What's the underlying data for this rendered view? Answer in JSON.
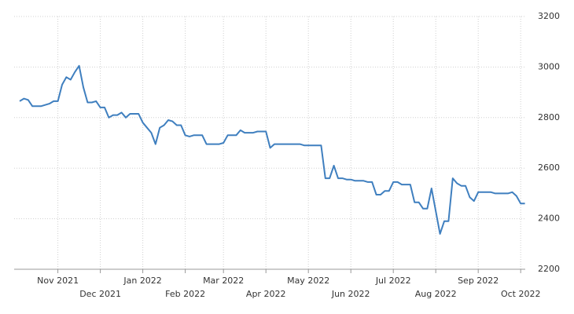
{
  "chart_data": {
    "type": "line",
    "categories": [
      null,
      null,
      null,
      null,
      null,
      null,
      null,
      null,
      null,
      "Nov 2021",
      null,
      null,
      null,
      null,
      null,
      null,
      null,
      null,
      null,
      "Dec 2021",
      null,
      null,
      null,
      null,
      null,
      null,
      null,
      null,
      null,
      "Jan 2022",
      null,
      null,
      null,
      null,
      null,
      null,
      null,
      null,
      null,
      "Feb 2022",
      null,
      null,
      null,
      null,
      null,
      null,
      null,
      null,
      "Mar 2022",
      null,
      null,
      null,
      null,
      null,
      null,
      null,
      null,
      null,
      "Apr 2022",
      null,
      null,
      null,
      null,
      null,
      null,
      null,
      null,
      null,
      "May 2022",
      null,
      null,
      null,
      null,
      null,
      null,
      null,
      null,
      null,
      "Jun 2022",
      null,
      null,
      null,
      null,
      null,
      null,
      null,
      null,
      null,
      "Jul 2022",
      null,
      null,
      null,
      null,
      null,
      null,
      null,
      null,
      null,
      "Aug 2022",
      null,
      null,
      null,
      null,
      null,
      null,
      null,
      null,
      null,
      "Sep 2022",
      null,
      null,
      null,
      null,
      null,
      null,
      null,
      null,
      null,
      "Oct 2022",
      null
    ],
    "values": [
      2865,
      2875,
      2870,
      2845,
      2845,
      2845,
      2850,
      2855,
      2865,
      2865,
      2930,
      2960,
      2950,
      2980,
      3005,
      2920,
      2860,
      2860,
      2865,
      2840,
      2840,
      2800,
      2810,
      2810,
      2820,
      2800,
      2815,
      2815,
      2815,
      2780,
      2760,
      2740,
      2695,
      2760,
      2770,
      2790,
      2785,
      2770,
      2770,
      2730,
      2725,
      2730,
      2730,
      2730,
      2695,
      2695,
      2695,
      2695,
      2700,
      2730,
      2730,
      2730,
      2750,
      2740,
      2740,
      2740,
      2745,
      2745,
      2745,
      2680,
      2695,
      2695,
      2695,
      2695,
      2695,
      2695,
      2695,
      2690,
      2690,
      2690,
      2690,
      2690,
      2560,
      2560,
      2610,
      2560,
      2560,
      2555,
      2555,
      2550,
      2550,
      2550,
      2545,
      2545,
      2495,
      2495,
      2510,
      2510,
      2545,
      2545,
      2535,
      2535,
      2535,
      2465,
      2465,
      2440,
      2440,
      2520,
      2430,
      2340,
      2390,
      2390,
      2560,
      2540,
      2530,
      2530,
      2485,
      2470,
      2505,
      2505,
      2505,
      2505,
      2500,
      2500,
      2500,
      2500,
      2505,
      2490,
      2460,
      2460
    ],
    "color": "#3f7fbf",
    "ylim": [
      2200,
      3200
    ],
    "yticks": [
      2200,
      2400,
      2600,
      2800,
      3000,
      3200
    ],
    "grid": true,
    "y_axis_side": "right"
  }
}
